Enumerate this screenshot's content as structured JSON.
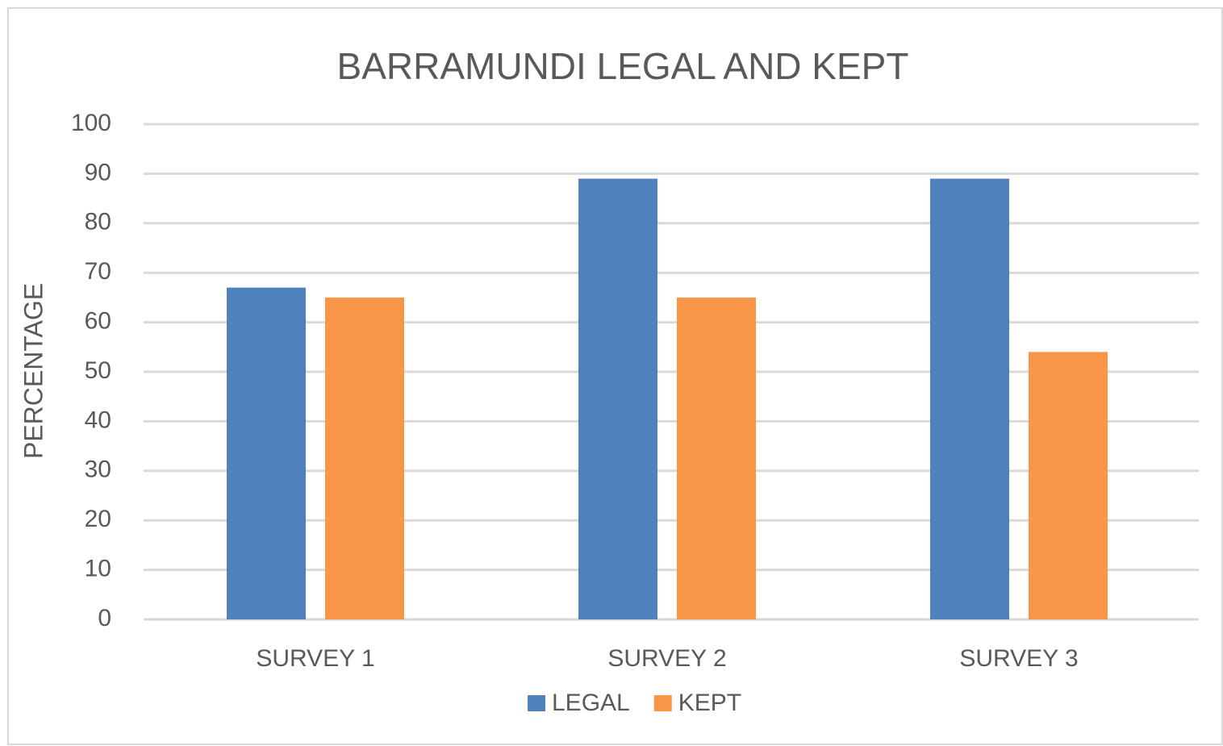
{
  "chart_data": {
    "type": "bar",
    "title": "BARRAMUNDI LEGAL AND KEPT",
    "ylabel": "PERCENTAGE",
    "categories": [
      "SURVEY 1",
      "SURVEY 2",
      "SURVEY 3"
    ],
    "series": [
      {
        "name": "LEGAL",
        "color": "#4f81bd",
        "values": [
          67,
          89,
          89
        ]
      },
      {
        "name": "KEPT",
        "color": "#f79646",
        "values": [
          65,
          65,
          54
        ]
      }
    ],
    "ylim": [
      0,
      100
    ],
    "yticks": [
      0,
      10,
      20,
      30,
      40,
      50,
      60,
      70,
      80,
      90,
      100
    ],
    "grid": true,
    "legend": "bottom"
  }
}
